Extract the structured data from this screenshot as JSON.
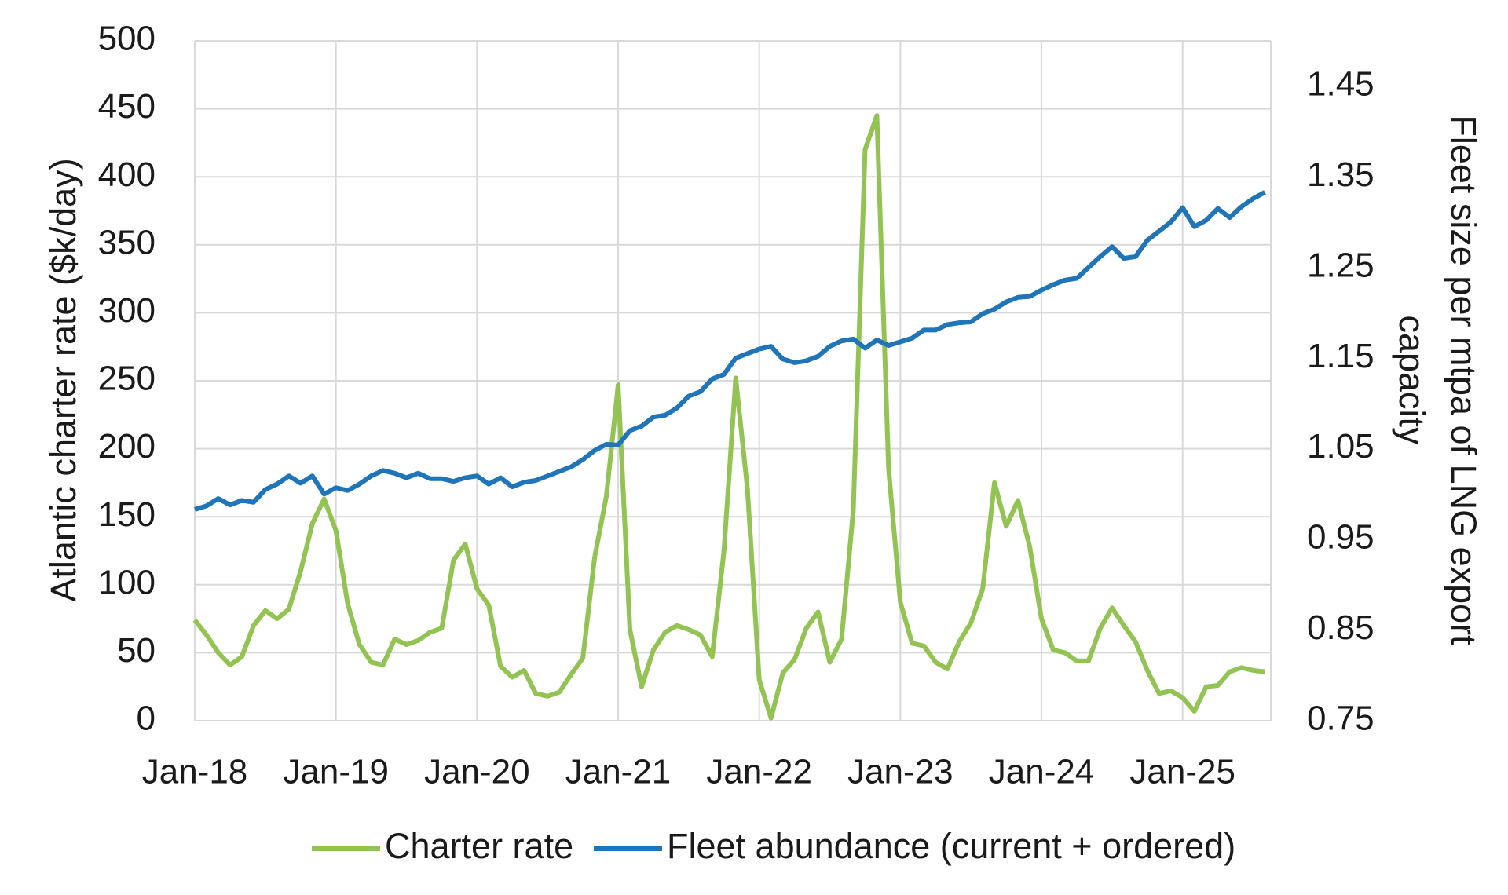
{
  "chart_data": {
    "type": "line",
    "ylabel": "Atlantic charter rate ($k/day)",
    "y2label": [
      "Fleet size per mtpa of LNG export",
      "capacity"
    ],
    "categories": [
      "Jan-18",
      null,
      null,
      null,
      null,
      null,
      null,
      null,
      null,
      null,
      null,
      null,
      "Jan-19",
      null,
      null,
      null,
      null,
      null,
      null,
      null,
      null,
      null,
      null,
      null,
      "Jan-20",
      null,
      null,
      null,
      null,
      null,
      null,
      null,
      null,
      null,
      null,
      null,
      "Jan-21",
      null,
      null,
      null,
      null,
      null,
      null,
      null,
      null,
      null,
      null,
      null,
      "Jan-22",
      null,
      null,
      null,
      null,
      null,
      null,
      null,
      null,
      null,
      null,
      null,
      "Jan-23",
      null,
      null,
      null,
      null,
      null,
      null,
      null,
      null,
      null,
      null,
      null,
      "Jan-24",
      null,
      null,
      null,
      null,
      null,
      null,
      null,
      null,
      null,
      null,
      null,
      "Jan-25",
      null,
      null,
      null,
      null,
      null,
      null,
      null
    ],
    "series": [
      {
        "name": "Charter rate",
        "color": "#92c353",
        "axis": "y",
        "values": [
          74,
          63,
          50,
          41,
          47,
          70,
          81,
          75,
          82,
          110,
          145,
          163,
          140,
          86,
          56,
          43,
          41,
          60,
          56,
          59,
          65,
          68,
          118,
          130,
          97,
          85,
          40,
          32,
          37,
          20,
          18,
          21,
          34,
          46,
          120,
          165,
          247,
          67,
          25,
          52,
          65,
          70,
          67,
          63,
          47,
          125,
          252,
          170,
          30,
          2,
          35,
          45,
          68,
          80,
          43,
          60,
          155,
          420,
          445,
          185,
          87,
          57,
          55,
          43,
          38,
          58,
          72,
          97,
          175,
          143,
          162,
          128,
          75,
          52,
          50,
          44,
          44,
          68,
          83,
          70,
          58,
          37,
          20,
          22,
          17,
          7,
          25,
          26,
          36,
          39,
          37,
          36
        ]
      },
      {
        "name": "Fleet abundance (current + ordered)",
        "color": "#1f75b8",
        "axis": "y2",
        "values": [
          0.983,
          0.987,
          0.995,
          0.988,
          0.993,
          0.991,
          1.005,
          1.011,
          1.02,
          1.012,
          1.02,
          1.0,
          1.007,
          1.004,
          1.011,
          1.02,
          1.026,
          1.023,
          1.018,
          1.023,
          1.017,
          1.017,
          1.014,
          1.018,
          1.02,
          1.011,
          1.018,
          1.008,
          1.013,
          1.015,
          1.02,
          1.025,
          1.03,
          1.038,
          1.048,
          1.055,
          1.054,
          1.07,
          1.075,
          1.085,
          1.087,
          1.095,
          1.108,
          1.113,
          1.127,
          1.132,
          1.15,
          1.155,
          1.16,
          1.163,
          1.149,
          1.145,
          1.147,
          1.152,
          1.163,
          1.169,
          1.171,
          1.161,
          1.17,
          1.164,
          1.168,
          1.172,
          1.181,
          1.181,
          1.187,
          1.189,
          1.19,
          1.199,
          1.204,
          1.212,
          1.217,
          1.218,
          1.225,
          1.231,
          1.236,
          1.238,
          1.25,
          1.262,
          1.273,
          1.26,
          1.262,
          1.28,
          1.29,
          1.3,
          1.316,
          1.295,
          1.302,
          1.315,
          1.305,
          1.317,
          1.326,
          1.333
        ]
      }
    ],
    "ylim": [
      0,
      500
    ],
    "yticks": [
      0,
      50,
      100,
      150,
      200,
      250,
      300,
      350,
      400,
      450,
      500
    ],
    "y2lim": [
      0.75,
      1.5
    ],
    "y2ticks": [
      0.75,
      0.85,
      0.95,
      1.05,
      1.15,
      1.25,
      1.35,
      1.45
    ],
    "grid": true,
    "legend": "bottom"
  }
}
